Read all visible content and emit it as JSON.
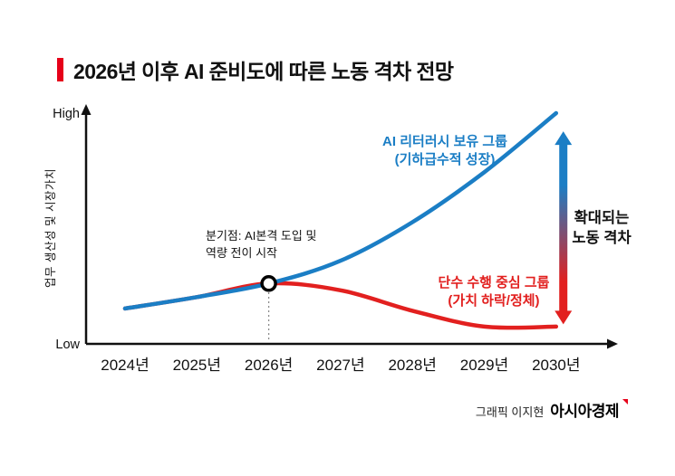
{
  "header": {
    "title": "2026년 이후 AI 준비도에 따른 노동 격차 전망",
    "accent_color": "#e60019"
  },
  "footer": {
    "credit": "그래픽 이지현",
    "brand": "아시아경제"
  },
  "chart_data": {
    "type": "line",
    "title": "2026년 이후 AI 준비도에 따른 노동 격차 전망",
    "x_categories": [
      "2024년",
      "2025년",
      "2026년",
      "2027년",
      "2028년",
      "2029년",
      "2030년"
    ],
    "x_values": [
      2024,
      2025,
      2026,
      2027,
      2028,
      2029,
      2030
    ],
    "ylabel": "업무 생산성 및 시장가치",
    "y_axis_top_label": "High",
    "y_axis_bottom_label": "Low",
    "ylim": [
      0,
      100
    ],
    "grid": false,
    "legend_position": "inline-annotations",
    "series": [
      {
        "name": "AI 리터러시 보유 그룹 (기하급수적 성장)",
        "label_lines": [
          "AI 리터러시 보유 그룹",
          "(기하급수적 성장)"
        ],
        "color": "#1b7ec5",
        "values": [
          14,
          19,
          25,
          35,
          52,
          74,
          100
        ]
      },
      {
        "name": "단수 수행 중심 그룹 (가치 하락/정체)",
        "label_lines": [
          "단수 수행 중심 그룹",
          "(가치 하락/정체)"
        ],
        "color": "#e2201f",
        "values": [
          14,
          19,
          25,
          22,
          13,
          6,
          6
        ]
      }
    ],
    "annotations": {
      "branch_point": {
        "x": 2026,
        "value": 25,
        "label_lines": [
          "분기점: AI본격 도입 및",
          "역량 전이 시작"
        ]
      },
      "gap_arrow": {
        "x": 2030.1,
        "value_top": 92,
        "value_bottom": 7,
        "label_lines": [
          "확대되는",
          "노동 격차"
        ],
        "top_color": "#1b7ec5",
        "bottom_color": "#e2201f"
      }
    }
  }
}
